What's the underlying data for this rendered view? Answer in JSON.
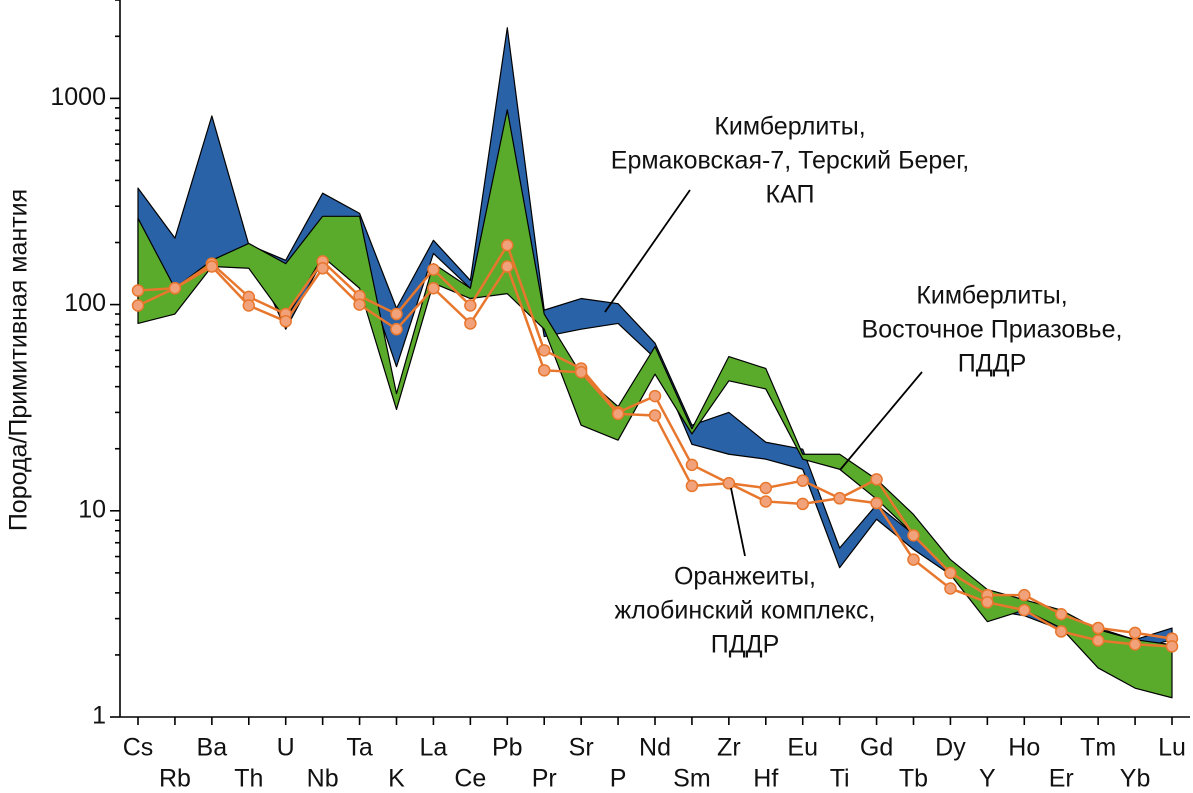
{
  "chart_data": {
    "type": "spider",
    "y_label": "Порода/Примитивная мантия",
    "log_y": true,
    "categories": [
      "Cs",
      "Rb",
      "Ba",
      "Th",
      "U",
      "Nb",
      "Ta",
      "K",
      "La",
      "Ce",
      "Pb",
      "Pr",
      "Sr",
      "P",
      "Nd",
      "Sm",
      "Zr",
      "Hf",
      "Eu",
      "Ti",
      "Gd",
      "Tb",
      "Dy",
      "Y",
      "Ho",
      "Er",
      "Tm",
      "Yb",
      "Lu"
    ],
    "ylim": [
      1,
      3000
    ],
    "yticks": [
      1,
      10,
      100,
      1000
    ],
    "minor_yticks": [
      2,
      3,
      4,
      5,
      6,
      7,
      8,
      9,
      20,
      30,
      40,
      50,
      60,
      70,
      80,
      90,
      200,
      300,
      400,
      500,
      600,
      700,
      800,
      900,
      2000,
      3000
    ],
    "bands": [
      {
        "color": "#2a62a8",
        "upper": [
          367,
          210,
          822,
          195,
          164,
          347,
          277,
          96,
          205,
          131,
          2200,
          94,
          107,
          101,
          65,
          26,
          30,
          21.5,
          19.9,
          6.6,
          10.7,
          7.7,
          5.5,
          3.7,
          3.5,
          3.0,
          2.7,
          2.37,
          2.7
        ],
        "lower": [
          107,
          120,
          158,
          187,
          76,
          164,
          167,
          50,
          177,
          120,
          850,
          70,
          76,
          81,
          55,
          21,
          18.8,
          17.8,
          15.9,
          5.3,
          9.1,
          6.5,
          4.9,
          3.3,
          3.1,
          2.65,
          2.37,
          2.12,
          2.37
        ]
      },
      {
        "color": "#5aab2b",
        "upper": [
          262,
          120,
          164,
          198,
          158,
          268,
          268,
          37,
          158,
          120,
          880,
          90,
          46,
          32,
          62.5,
          25,
          56,
          49,
          18.8,
          18.8,
          14.2,
          9.6,
          5.8,
          4.15,
          3.7,
          3.3,
          2.65,
          2.37,
          2.24
        ],
        "lower": [
          81,
          90,
          153,
          150,
          85,
          171,
          120,
          31,
          127,
          107,
          113,
          76,
          26,
          22,
          46,
          23.6,
          42.7,
          39,
          17.8,
          15.9,
          11.4,
          7.7,
          4.9,
          2.9,
          3.3,
          2.7,
          1.73,
          1.38,
          1.24
        ]
      }
    ],
    "lines": [
      {
        "color": "#e8772e",
        "marker_color": "#f2a27a",
        "values": [
          117,
          120,
          158,
          109,
          90,
          162,
          110,
          90,
          148,
          99,
          194,
          60,
          49,
          30,
          36,
          16.7,
          13.6,
          12.9,
          14,
          11.5,
          14.2,
          7.6,
          5,
          3.9,
          3.9,
          3.15,
          2.7,
          2.56,
          2.4
        ]
      },
      {
        "color": "#e8772e",
        "marker_color": "#f2a27a",
        "values": [
          99,
          120,
          153,
          99,
          83,
          150,
          100,
          76,
          120,
          81,
          153,
          48,
          47,
          29.5,
          29,
          13.2,
          13.6,
          11.1,
          10.8,
          11.5,
          10.9,
          5.8,
          4.2,
          3.6,
          3.3,
          2.6,
          2.35,
          2.25,
          2.2
        ]
      }
    ],
    "annotations": [
      {
        "lines": [
          "Кимберлиты,",
          "Ермаковская-7, Терский Берег,",
          "КАП"
        ]
      },
      {
        "lines": [
          "Кимберлиты,",
          "Восточное Приазовье,",
          "ПДДР"
        ]
      },
      {
        "lines": [
          "Оранжеиты,",
          "жлобинский комплекс,",
          "ПДДР"
        ]
      }
    ]
  }
}
